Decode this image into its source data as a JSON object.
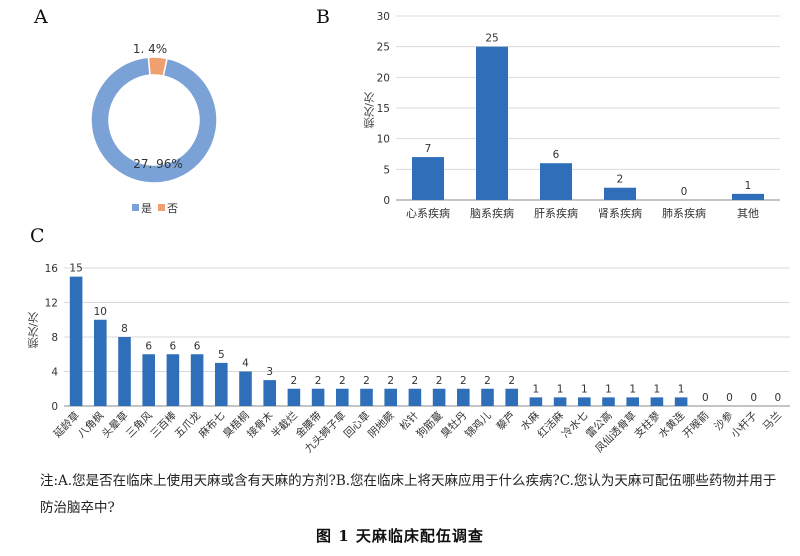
{
  "panels": {
    "a": {
      "letter": "A",
      "chart_data": {
        "type": "pie",
        "style": "donut",
        "slices": [
          {
            "label": "是",
            "value": 27.96,
            "value_label": "27. 96%",
            "color": "#7aa2d6"
          },
          {
            "label": "否",
            "value": 1.4,
            "value_label": "1. 4%",
            "color": "#f0a070"
          }
        ],
        "legend_position": "bottom",
        "legend": [
          "是",
          "否"
        ]
      }
    },
    "b": {
      "letter": "B",
      "chart_data": {
        "type": "bar",
        "categories": [
          "心系疾病",
          "脑系疾病",
          "肝系疾病",
          "肾系疾病",
          "肺系疾病",
          "其他"
        ],
        "values": [
          7,
          25,
          6,
          2,
          0,
          1
        ],
        "ylabel": "频次/次",
        "ylim": [
          0,
          30
        ],
        "yticks": [
          0,
          5,
          10,
          15,
          20,
          25,
          30
        ],
        "grid": true,
        "bar_color": "#2f6fb9"
      }
    },
    "c": {
      "letter": "C",
      "chart_data": {
        "type": "bar",
        "categories": [
          "延龄草",
          "八角枫",
          "头晕草",
          "三角风",
          "三百棒",
          "五爪龙",
          "麻布七",
          "臭梧桐",
          "接骨木",
          "半截烂",
          "金腰带",
          "九头狮子草",
          "回心草",
          "阴地蕨",
          "松针",
          "狗筋蔓",
          "臭牡丹",
          "锦鸡儿",
          "藜芦",
          "水麻",
          "红活麻",
          "冷水七",
          "雷公高",
          "凤仙透骨草",
          "支柱蓼",
          "水黄连",
          "开喉箭",
          "沙参",
          "小杆子",
          "马兰"
        ],
        "values": [
          15,
          10,
          8,
          6,
          6,
          6,
          5,
          4,
          3,
          2,
          2,
          2,
          2,
          2,
          2,
          2,
          2,
          2,
          2,
          1,
          1,
          1,
          1,
          1,
          1,
          1,
          0,
          0,
          0,
          0
        ],
        "ylabel": "频次/次",
        "ylim": [
          0,
          16
        ],
        "yticks": [
          0,
          4,
          8,
          12,
          16
        ],
        "grid": true,
        "bar_color": "#2f6fb9"
      }
    }
  },
  "note": "注:A.您是否在临床上使用天麻或含有天麻的方剂?B.您在临床上将天麻应用于什么疾病?C.您认为天麻可配伍哪些药物并用于防治脑卒中?",
  "caption": "图 1  天麻临床配伍调查"
}
